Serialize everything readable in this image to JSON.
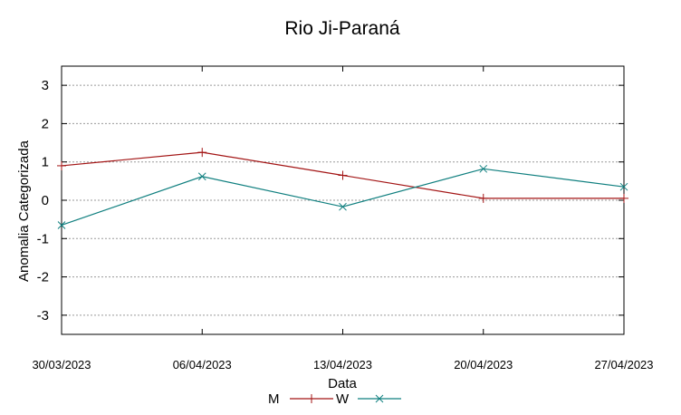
{
  "chart_data": {
    "type": "line",
    "title": "Rio Ji-Paraná",
    "xlabel": "Data",
    "ylabel": "Anomalia Categorizada",
    "x": [
      "30/03/2023",
      "06/04/2023",
      "13/04/2023",
      "20/04/2023",
      "27/04/2023"
    ],
    "x_tick_labels": [
      "30/03/2023",
      "06/04/2023",
      "13/04/2023",
      "20/04/2023",
      "27/04/2023"
    ],
    "y_ticks": [
      3,
      2,
      1,
      0,
      -1,
      -2,
      -3
    ],
    "y_tick_labels": [
      "3",
      "2",
      "1",
      "0",
      "-1",
      "-2",
      "-3"
    ],
    "ylim": [
      -3.5,
      3.5
    ],
    "grid": true,
    "legend_position": "bottom-center",
    "series": [
      {
        "name": "M",
        "color": "#a31515",
        "marker": "plus",
        "values": [
          0.9,
          1.25,
          0.65,
          0.05,
          0.05
        ]
      },
      {
        "name": "W",
        "color": "#0f7f7f",
        "marker": "x",
        "values": [
          -0.65,
          0.62,
          -0.17,
          0.82,
          0.35
        ]
      }
    ]
  }
}
